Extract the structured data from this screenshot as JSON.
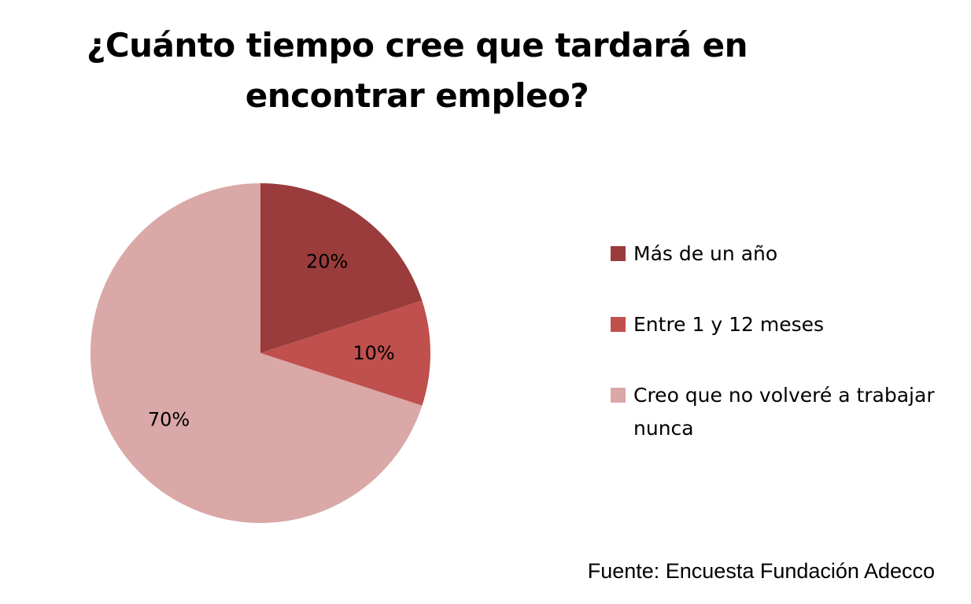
{
  "chart_data": {
    "type": "pie",
    "title": "¿Cuánto tiempo cree que tardará en encontrar empleo?",
    "start": "12 o'clock",
    "direction": "clockwise",
    "slices": [
      {
        "label": "Más de un año",
        "value": 20,
        "value_label": "20%",
        "color": "#993c3b"
      },
      {
        "label": "Entre 1 y 12 meses",
        "value": 10,
        "value_label": "10%",
        "color": "#c0504d"
      },
      {
        "label": "Creo que no volveré a trabajar nunca",
        "value": 70,
        "value_label": "70%",
        "color": "#d9a8a7"
      }
    ],
    "legend_position": "right"
  },
  "source": "Fuente: Encuesta Fundación Adecco"
}
